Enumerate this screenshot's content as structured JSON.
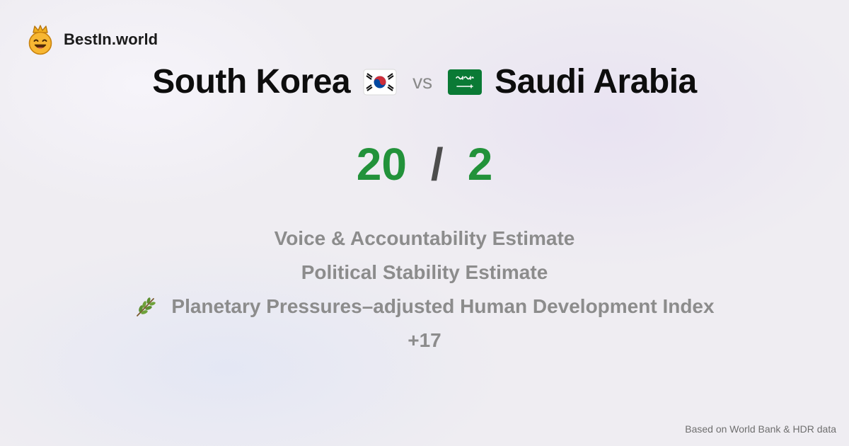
{
  "brand": {
    "name": "BestIn.world",
    "logo_icon": "crowned-smiley-icon"
  },
  "comparison": {
    "left": {
      "name": "South Korea",
      "flag_icon": "south-korea-flag-icon"
    },
    "vs_label": "vs",
    "right": {
      "name": "Saudi Arabia",
      "flag_icon": "saudi-arabia-flag-icon"
    }
  },
  "score": {
    "left": "20",
    "separator": "/",
    "right": "2",
    "color": "#22923a"
  },
  "metrics": [
    {
      "label": "Voice & Accountability Estimate"
    },
    {
      "label": "Political Stability Estimate"
    },
    {
      "label": "Planetary Pressures–adjusted Human Development Index",
      "icon": "leaf-branch-icon"
    }
  ],
  "more_label": "+17",
  "footer": {
    "source": "Based on World Bank & HDR data"
  }
}
